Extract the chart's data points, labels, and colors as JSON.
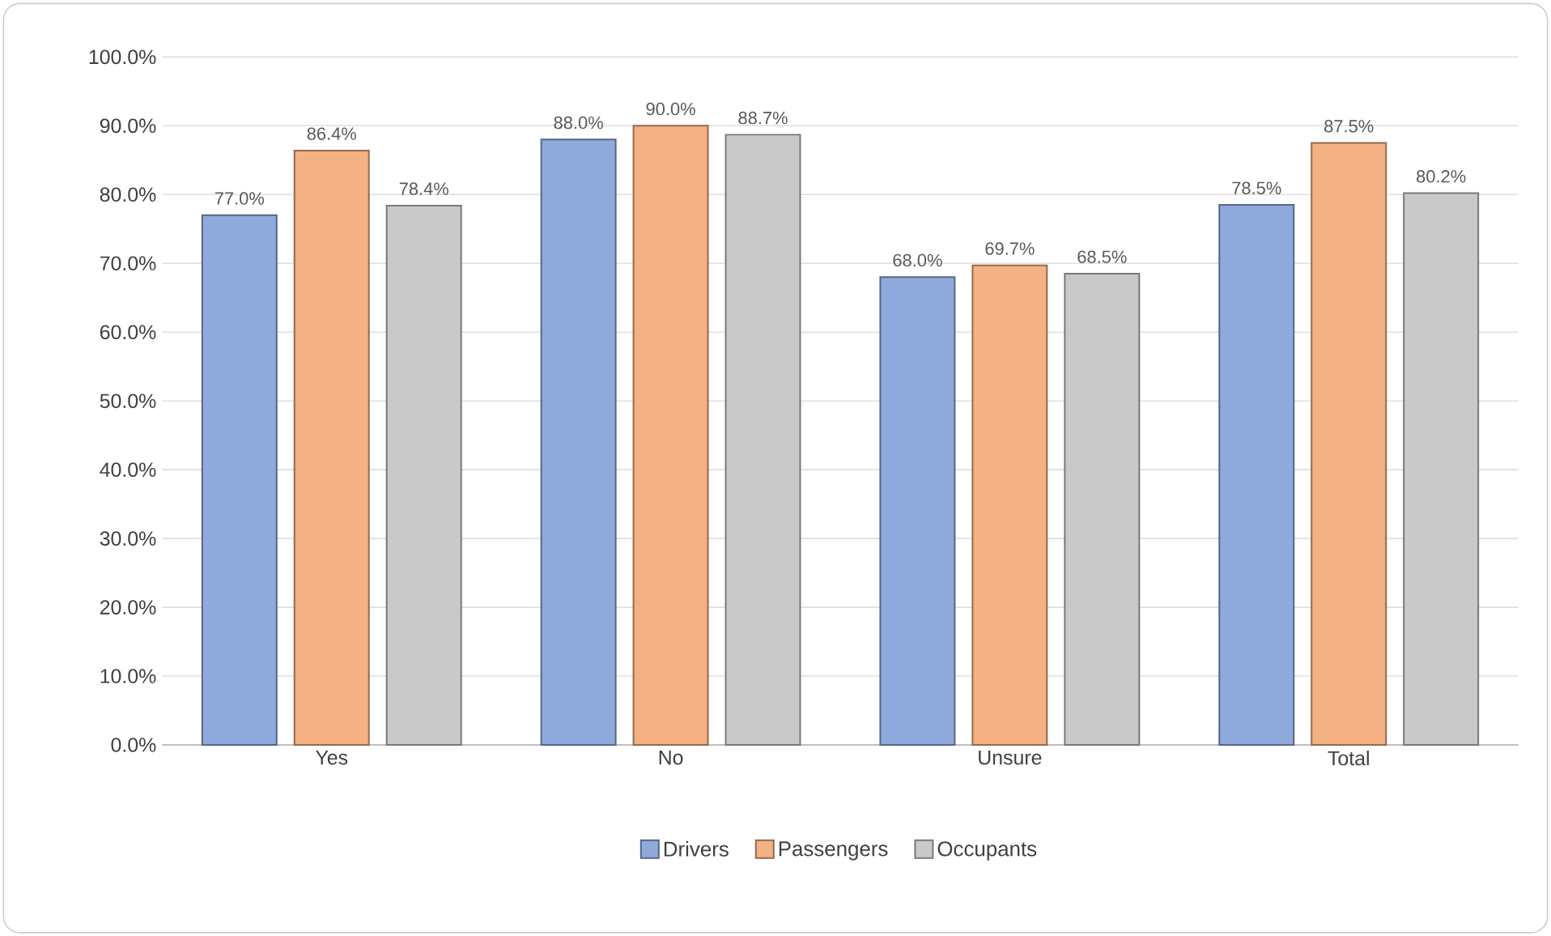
{
  "chart_data": {
    "type": "bar",
    "categories": [
      "Yes",
      "No",
      "Unsure",
      "Total"
    ],
    "series": [
      {
        "name": "Drivers",
        "color": "#8faadc",
        "values": [
          77.0,
          88.0,
          68.0,
          78.5
        ],
        "value_labels": [
          "77.0%",
          "88.0%",
          "68.0%",
          "78.5%"
        ]
      },
      {
        "name": "Passengers",
        "color": "#f4b183",
        "values": [
          86.4,
          90.0,
          69.7,
          87.5
        ],
        "value_labels": [
          "86.4%",
          "90.0%",
          "69.7%",
          "87.5%"
        ]
      },
      {
        "name": "Occupants",
        "color": "#c9c9c9",
        "values": [
          78.4,
          88.7,
          68.5,
          80.2
        ],
        "value_labels": [
          "78.4%",
          "88.7%",
          "68.5%",
          "80.2%"
        ]
      }
    ],
    "ylim": [
      0,
      100
    ],
    "yticks": [
      {
        "value": 0,
        "label": "0.0%"
      },
      {
        "value": 10,
        "label": "10.0%"
      },
      {
        "value": 20,
        "label": "20.0%"
      },
      {
        "value": 30,
        "label": "30.0%"
      },
      {
        "value": 40,
        "label": "40.0%"
      },
      {
        "value": 50,
        "label": "50.0%"
      },
      {
        "value": 60,
        "label": "60.0%"
      },
      {
        "value": 70,
        "label": "70.0%"
      },
      {
        "value": 80,
        "label": "80.0%"
      },
      {
        "value": 90,
        "label": "90.0%"
      },
      {
        "value": 100,
        "label": "100.0%"
      }
    ],
    "grid": "y",
    "legend": "bottom"
  }
}
